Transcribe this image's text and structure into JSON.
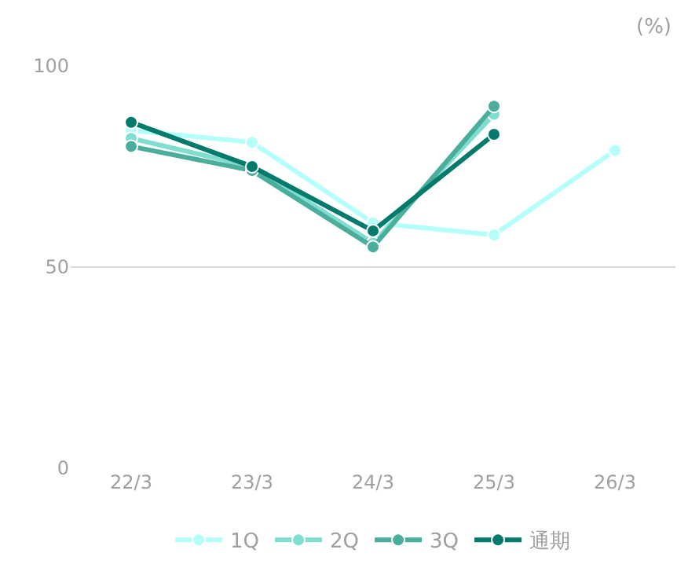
{
  "chart_data": {
    "type": "line",
    "categories": [
      "22/3",
      "23/3",
      "24/3",
      "25/3",
      "26/3"
    ],
    "series": [
      {
        "name": "1Q",
        "color": "#b5fffb",
        "values": [
          84,
          81,
          61,
          58,
          79
        ]
      },
      {
        "name": "2Q",
        "color": "#7fdecf",
        "values": [
          82,
          75,
          56,
          88,
          null
        ]
      },
      {
        "name": "3Q",
        "color": "#4bae9d",
        "values": [
          80,
          74,
          55,
          90,
          null
        ]
      },
      {
        "name": "通期",
        "color": "#037a6b",
        "values": [
          86,
          75,
          59,
          83,
          null
        ]
      }
    ],
    "ylim": [
      0,
      100
    ],
    "yticks": [
      0,
      50,
      100
    ],
    "grid": "y",
    "legend": "bottom",
    "marker": "circle",
    "line_style": "solid",
    "annotations": [
      "(%)"
    ]
  }
}
